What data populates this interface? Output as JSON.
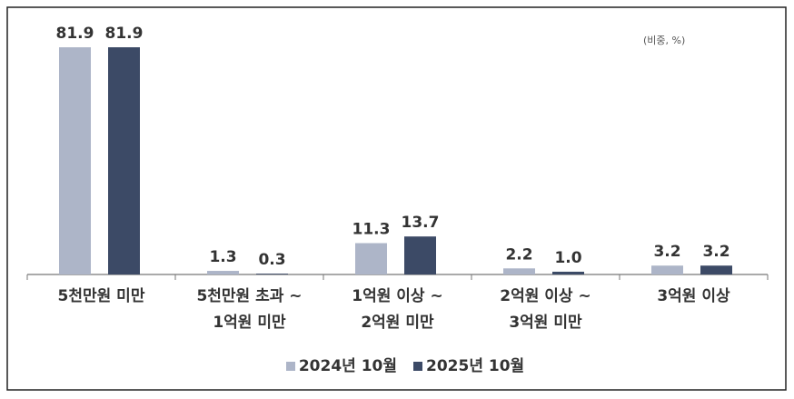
{
  "chart_data": {
    "type": "bar",
    "unit_note": "(비중, %)",
    "categories": [
      "5천만원 미만",
      "5천만원 초과 ~\n1억원 미만",
      "1억원 이상 ~\n2억원 미만",
      "2억원 이상 ~\n3억원 미만",
      "3억원 이상"
    ],
    "series": [
      {
        "name": "2024년 10월",
        "color": "#adb5c8",
        "values": [
          81.9,
          1.3,
          11.3,
          2.2,
          3.2
        ]
      },
      {
        "name": "2025년 10월",
        "color": "#3c4a66",
        "values": [
          81.9,
          0.3,
          13.7,
          1.0,
          3.2
        ],
        "value_labels": [
          "81.9",
          "0.3",
          "13.7",
          "1.0",
          "3.2"
        ]
      }
    ]
  }
}
